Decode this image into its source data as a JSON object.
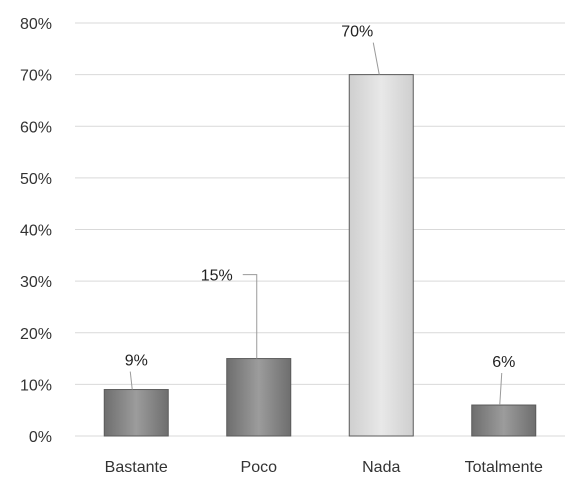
{
  "chart_data": {
    "type": "bar",
    "categories": [
      "Bastante",
      "Poco",
      "Nada",
      "Totalmente"
    ],
    "values": [
      9,
      15,
      70,
      6
    ],
    "value_labels": [
      "9%",
      "15%",
      "70%",
      "6%"
    ],
    "y_tick_labels": [
      "0%",
      "10%",
      "20%",
      "30%",
      "40%",
      "50%",
      "60%",
      "70%",
      "80%"
    ],
    "ylim": [
      0,
      80
    ],
    "y_tick_step": 10,
    "grid": true,
    "legend": "none",
    "title": "",
    "xlabel": "",
    "ylabel": "",
    "bar_colors": [
      "#6e6e6e",
      "#6e6e6e",
      "#cfcfcf",
      "#6e6e6e"
    ],
    "bar_highlight_colors": [
      "#9c9c9c",
      "#9c9c9c",
      "#e8e8e8",
      "#9c9c9c"
    ]
  }
}
